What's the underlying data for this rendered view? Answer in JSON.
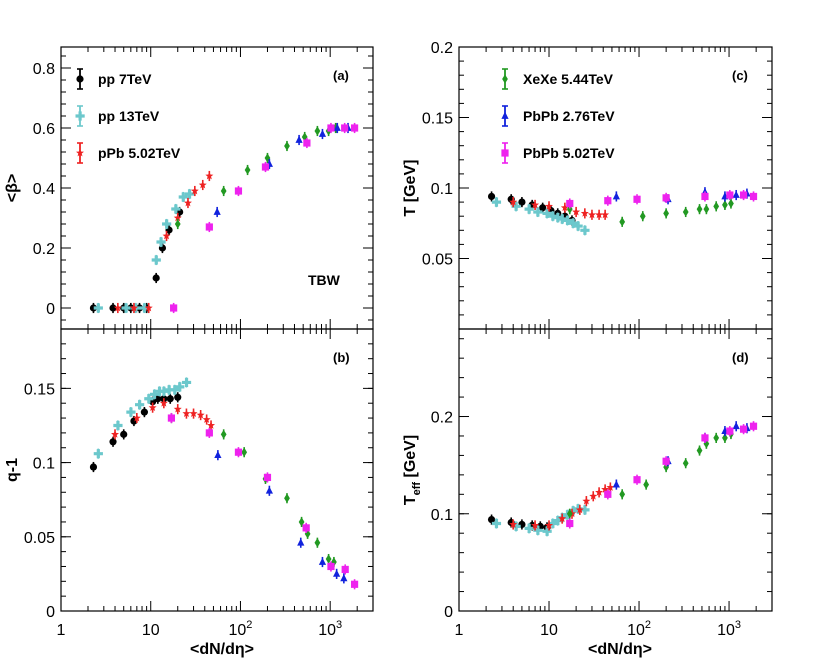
{
  "figure": {
    "x_axis_title": "<dN/dη>",
    "x_ticks": [
      {
        "v": 1,
        "label": "1"
      },
      {
        "v": 10,
        "label": "10"
      },
      {
        "v": 100,
        "label": "10",
        "sup": "2"
      },
      {
        "v": 1000,
        "label": "10",
        "sup": "3"
      }
    ]
  },
  "series_styles": {
    "pp7": {
      "color": "#000000",
      "marker": "circle"
    },
    "pp13": {
      "color": "#6cc8cc",
      "marker": "cross"
    },
    "pPb502": {
      "color": "#ee2222",
      "marker": "star"
    },
    "XeXe": {
      "color": "#229922",
      "marker": "diamond"
    },
    "PbPb276": {
      "color": "#1122dd",
      "marker": "triangle"
    },
    "PbPb502": {
      "color": "#ee22ee",
      "marker": "square"
    }
  },
  "chart_data": [
    {
      "id": "a",
      "type": "scatter",
      "tag": "(a)",
      "ylabel": "<β>",
      "annotation": "TBW",
      "xlim": [
        1,
        3000
      ],
      "ylim": [
        -0.07,
        0.87
      ],
      "yticks": [
        {
          "v": 0,
          "label": "0"
        },
        {
          "v": 0.2,
          "label": "0.2"
        },
        {
          "v": 0.4,
          "label": "0.4"
        },
        {
          "v": 0.6,
          "label": "0.6"
        },
        {
          "v": 0.8,
          "label": "0.8"
        }
      ],
      "legend": [
        {
          "series": "pp7",
          "label": "pp 7TeV"
        },
        {
          "series": "pp13",
          "label": "pp 13TeV"
        },
        {
          "series": "pPb502",
          "label": "pPb 5.02TeV"
        }
      ],
      "series": [
        {
          "key": "pp7",
          "name": "pp 7TeV",
          "x": [
            2.3,
            3.8,
            5.0,
            6.0,
            7.5,
            9.0,
            11.5,
            13.5,
            16.0,
            21.0
          ],
          "y": [
            0.0,
            0.0,
            0.0,
            0.0,
            0.0,
            0.0,
            0.1,
            0.2,
            0.26,
            0.32
          ]
        },
        {
          "key": "pp13",
          "name": "pp 13TeV",
          "x": [
            2.6,
            5.3,
            6.8,
            8.5,
            11.5,
            13.0,
            15.0,
            19.0,
            23.0,
            27.0
          ],
          "y": [
            0.0,
            0.0,
            0.0,
            0.0,
            0.16,
            0.22,
            0.28,
            0.33,
            0.37,
            0.38
          ]
        },
        {
          "key": "pPb502",
          "name": "pPb 5.02TeV",
          "x": [
            4.3,
            6.5,
            9.5,
            15.0,
            20.0,
            26.0,
            31.0,
            38.0,
            45.0
          ],
          "y": [
            0.0,
            0.0,
            0.0,
            0.24,
            0.3,
            0.35,
            0.39,
            0.41,
            0.44
          ]
        },
        {
          "key": "XeXe",
          "name": "XeXe 5.44TeV",
          "x": [
            20.0,
            65.0,
            120.0,
            200.0,
            330.0,
            520.0,
            720.0,
            960.0,
            1150.0
          ],
          "y": [
            0.28,
            0.39,
            0.46,
            0.5,
            0.54,
            0.57,
            0.59,
            0.59,
            0.6
          ]
        },
        {
          "key": "PbPb276",
          "name": "PbPb 2.76TeV",
          "x": [
            55.0,
            210.0,
            450.0,
            820.0,
            1200.0,
            1580.0
          ],
          "y": [
            0.32,
            0.48,
            0.56,
            0.58,
            0.6,
            0.6
          ]
        },
        {
          "key": "PbPb502",
          "name": "PbPb 5.02TeV",
          "x": [
            18.0,
            45.0,
            95.0,
            190.0,
            550.0,
            1020.0,
            1450.0,
            1870.0
          ],
          "y": [
            0.0,
            0.27,
            0.39,
            0.47,
            0.55,
            0.6,
            0.6,
            0.6
          ]
        }
      ]
    },
    {
      "id": "b",
      "type": "scatter",
      "tag": "(b)",
      "ylabel": "q-1",
      "xlim": [
        1,
        3000
      ],
      "ylim": [
        0,
        0.19
      ],
      "yticks": [
        {
          "v": 0,
          "label": "0"
        },
        {
          "v": 0.05,
          "label": "0.05"
        },
        {
          "v": 0.1,
          "label": "0.1"
        },
        {
          "v": 0.15,
          "label": "0.15"
        }
      ],
      "series": [
        {
          "key": "pp7",
          "name": "pp 7TeV",
          "x": [
            2.3,
            3.8,
            5.0,
            6.5,
            8.5,
            10.5,
            12.0,
            14.0,
            16.5,
            20.0
          ],
          "y": [
            0.097,
            0.114,
            0.119,
            0.128,
            0.134,
            0.141,
            0.143,
            0.143,
            0.143,
            0.144
          ]
        },
        {
          "key": "pp13",
          "name": "pp 13TeV",
          "x": [
            2.6,
            4.3,
            6.0,
            7.5,
            9.5,
            11.0,
            12.5,
            14.0,
            16.0,
            18.5,
            21.0,
            25.0
          ],
          "y": [
            0.106,
            0.125,
            0.134,
            0.139,
            0.143,
            0.146,
            0.148,
            0.148,
            0.149,
            0.149,
            0.151,
            0.154
          ]
        },
        {
          "key": "pPb502",
          "name": "pPb 5.02TeV",
          "x": [
            4.0,
            7.0,
            10.5,
            14.0,
            20.0,
            25.0,
            30.0,
            36.0,
            42.0,
            47.0
          ],
          "y": [
            0.119,
            0.13,
            0.137,
            0.14,
            0.136,
            0.133,
            0.133,
            0.132,
            0.129,
            0.125
          ]
        },
        {
          "key": "XeXe",
          "name": "XeXe 5.44TeV",
          "x": [
            17.0,
            65.0,
            110.0,
            190.0,
            330.0,
            480.0,
            560.0,
            720.0,
            960.0,
            1100.0
          ],
          "y": [
            0.13,
            0.119,
            0.107,
            0.089,
            0.076,
            0.06,
            0.052,
            0.046,
            0.035,
            0.033
          ]
        },
        {
          "key": "PbPb276",
          "name": "PbPb 2.76TeV",
          "x": [
            56.0,
            210.0,
            470.0,
            820.0,
            1180.0,
            1420.0
          ],
          "y": [
            0.105,
            0.081,
            0.046,
            0.033,
            0.025,
            0.022
          ]
        },
        {
          "key": "PbPb502",
          "name": "PbPb 5.02TeV",
          "x": [
            17.0,
            45.0,
            95.0,
            200.0,
            540.0,
            1020.0,
            1470.0,
            1870.0
          ],
          "y": [
            0.13,
            0.12,
            0.107,
            0.09,
            0.056,
            0.03,
            0.028,
            0.018
          ]
        }
      ]
    },
    {
      "id": "c",
      "type": "scatter",
      "tag": "(c)",
      "ylabel": "T [GeV]",
      "xlim": [
        1,
        3000
      ],
      "ylim": [
        0,
        0.2
      ],
      "yticks": [
        {
          "v": 0.05,
          "label": "0.05"
        },
        {
          "v": 0.1,
          "label": "0.1"
        },
        {
          "v": 0.15,
          "label": "0.15"
        },
        {
          "v": 0.2,
          "label": "0.2"
        }
      ],
      "legend": [
        {
          "series": "XeXe",
          "label": "XeXe 5.44TeV"
        },
        {
          "series": "PbPb276",
          "label": "PbPb 2.76TeV"
        },
        {
          "series": "PbPb502",
          "label": "PbPb 5.02TeV"
        }
      ],
      "series": [
        {
          "key": "pp7",
          "name": "pp 7TeV",
          "x": [
            2.3,
            3.8,
            5.0,
            6.5,
            8.5,
            10.5,
            12.5,
            15.0,
            18.0
          ],
          "y": [
            0.094,
            0.092,
            0.09,
            0.088,
            0.086,
            0.084,
            0.082,
            0.08,
            0.077
          ]
        },
        {
          "key": "pp13",
          "name": "pp 13TeV",
          "x": [
            2.6,
            4.3,
            6.0,
            7.5,
            9.5,
            11.0,
            12.5,
            14.0,
            16.0,
            18.5,
            21.0,
            25.0
          ],
          "y": [
            0.09,
            0.087,
            0.085,
            0.083,
            0.082,
            0.08,
            0.079,
            0.078,
            0.077,
            0.075,
            0.073,
            0.07
          ]
        },
        {
          "key": "pPb502",
          "name": "pPb 5.02TeV",
          "x": [
            4.0,
            7.0,
            10.0,
            15.0,
            20.0,
            25.0,
            30.0,
            36.0,
            42.0
          ],
          "y": [
            0.09,
            0.088,
            0.087,
            0.086,
            0.083,
            0.082,
            0.081,
            0.081,
            0.081
          ]
        },
        {
          "key": "XeXe",
          "name": "XeXe 5.44TeV",
          "x": [
            17.0,
            65.0,
            110.0,
            200.0,
            330.0,
            470.0,
            560.0,
            720.0,
            900.0,
            1050.0
          ],
          "y": [
            0.085,
            0.076,
            0.08,
            0.082,
            0.083,
            0.085,
            0.085,
            0.087,
            0.088,
            0.089
          ]
        },
        {
          "key": "PbPb276",
          "name": "PbPb 2.76TeV",
          "x": [
            56.0,
            210.0,
            540.0,
            900.0,
            1200.0,
            1580.0
          ],
          "y": [
            0.094,
            0.092,
            0.097,
            0.094,
            0.095,
            0.096
          ]
        },
        {
          "key": "PbPb502",
          "name": "PbPb 5.02TeV",
          "x": [
            17.0,
            45.0,
            95.0,
            200.0,
            540.0,
            1020.0,
            1450.0,
            1870.0
          ],
          "y": [
            0.089,
            0.091,
            0.092,
            0.093,
            0.094,
            0.095,
            0.095,
            0.094
          ]
        }
      ]
    },
    {
      "id": "d",
      "type": "scatter",
      "tag": "(d)",
      "ylabel": "T",
      "ylabel_sub": "eff",
      "ylabel_suffix": " [GeV]",
      "xlim": [
        1,
        3000
      ],
      "ylim": [
        0,
        0.29
      ],
      "yticks": [
        {
          "v": 0,
          "label": "0"
        },
        {
          "v": 0.1,
          "label": "0.1"
        },
        {
          "v": 0.2,
          "label": "0.2"
        }
      ],
      "series": [
        {
          "key": "pp7",
          "name": "pp 7TeV",
          "x": [
            2.3,
            3.8,
            5.0,
            6.5,
            8.0,
            9.5
          ],
          "y": [
            0.094,
            0.091,
            0.089,
            0.088,
            0.087,
            0.086
          ]
        },
        {
          "key": "pp13",
          "name": "pp 13TeV",
          "x": [
            2.6,
            4.3,
            6.0,
            7.5,
            9.5,
            11.0,
            12.5,
            14.0,
            16.0,
            18.5,
            21.0,
            25.0
          ],
          "y": [
            0.09,
            0.087,
            0.085,
            0.083,
            0.082,
            0.09,
            0.093,
            0.096,
            0.099,
            0.103,
            0.105,
            0.104
          ]
        },
        {
          "key": "pPb502",
          "name": "pPb 5.02TeV",
          "x": [
            4.0,
            7.0,
            10.0,
            14.0,
            18.0,
            22.0,
            26.0,
            31.0,
            36.0,
            42.0,
            48.0
          ],
          "y": [
            0.089,
            0.088,
            0.088,
            0.095,
            0.1,
            0.104,
            0.113,
            0.118,
            0.122,
            0.125,
            0.127
          ]
        },
        {
          "key": "XeXe",
          "name": "XeXe 5.44TeV",
          "x": [
            17.0,
            65.0,
            120.0,
            200.0,
            330.0,
            470.0,
            560.0,
            720.0,
            900.0,
            1050.0
          ],
          "y": [
            0.1,
            0.12,
            0.13,
            0.148,
            0.152,
            0.165,
            0.172,
            0.178,
            0.178,
            0.182
          ]
        },
        {
          "key": "PbPb276",
          "name": "PbPb 2.76TeV",
          "x": [
            56.0,
            210.0,
            540.0,
            900.0,
            1200.0,
            1580.0
          ],
          "y": [
            0.13,
            0.154,
            0.178,
            0.185,
            0.19,
            0.188
          ]
        },
        {
          "key": "PbPb502",
          "name": "PbPb 5.02TeV",
          "x": [
            17.0,
            45.0,
            95.0,
            200.0,
            540.0,
            1020.0,
            1450.0,
            1870.0
          ],
          "y": [
            0.09,
            0.12,
            0.135,
            0.154,
            0.178,
            0.185,
            0.187,
            0.19
          ]
        }
      ]
    }
  ]
}
